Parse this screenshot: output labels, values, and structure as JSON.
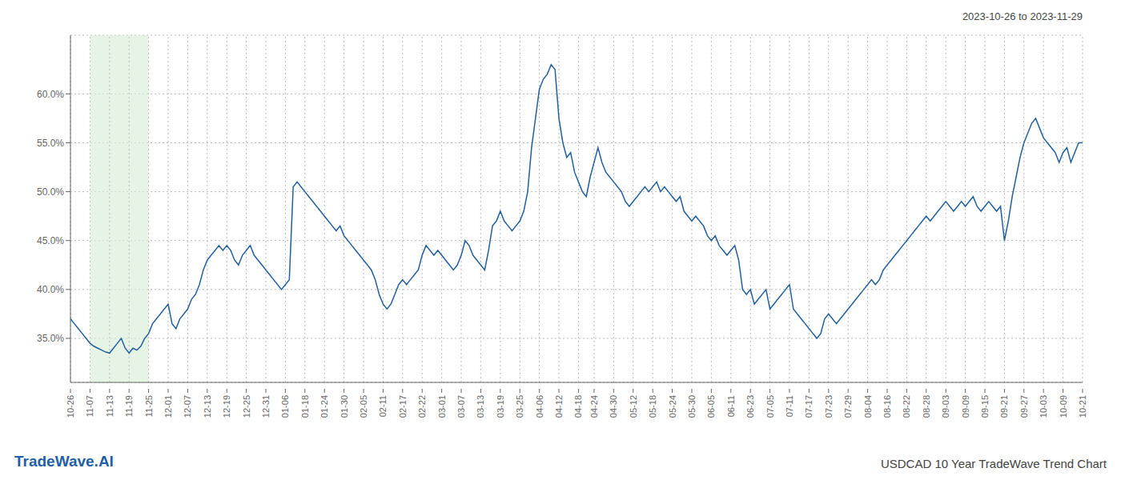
{
  "chart_data": {
    "type": "line",
    "title": "USDCAD 10 Year TradeWave Trend Chart",
    "subtitle": "2023-10-26 to 2023-11-29",
    "annotations": [
      "TradeWave.AI"
    ],
    "color": "#2060a0",
    "grid": true,
    "ylim": [
      30.5,
      66.0
    ],
    "yticks": [
      {
        "value": 35.0,
        "label": "35.0%"
      },
      {
        "value": 40.0,
        "label": "40.0%"
      },
      {
        "value": 45.0,
        "label": "45.0%"
      },
      {
        "value": 50.0,
        "label": "50.0%"
      },
      {
        "value": 55.0,
        "label": "55.0%"
      },
      {
        "value": 60.0,
        "label": "60.0%"
      }
    ],
    "highlight": {
      "from": "11-07",
      "to": "11-25",
      "color": "#d6edd6"
    },
    "categories": [
      "10-26",
      null,
      null,
      null,
      null,
      "11-07",
      null,
      null,
      null,
      null,
      "11-13",
      null,
      null,
      null,
      null,
      "11-19",
      null,
      null,
      null,
      null,
      "11-25",
      null,
      null,
      null,
      null,
      "12-01",
      null,
      null,
      null,
      null,
      "12-07",
      null,
      null,
      null,
      null,
      "12-13",
      null,
      null,
      null,
      null,
      "12-19",
      null,
      null,
      null,
      null,
      "12-25",
      null,
      null,
      null,
      null,
      "12-31",
      null,
      null,
      null,
      null,
      "01-06",
      null,
      null,
      null,
      null,
      "01-18",
      null,
      null,
      null,
      null,
      "01-24",
      null,
      null,
      null,
      null,
      "01-30",
      null,
      null,
      null,
      null,
      "02-05",
      null,
      null,
      null,
      null,
      "02-11",
      null,
      null,
      null,
      null,
      "02-17",
      null,
      null,
      null,
      null,
      "02-22",
      null,
      null,
      null,
      null,
      "03-01",
      null,
      null,
      null,
      null,
      "03-07",
      null,
      null,
      null,
      null,
      "03-13",
      null,
      null,
      null,
      null,
      "03-19",
      null,
      null,
      null,
      null,
      "03-25",
      null,
      null,
      null,
      null,
      "04-06",
      null,
      null,
      null,
      null,
      "04-12",
      null,
      null,
      null,
      null,
      "04-18",
      null,
      null,
      null,
      "04-24",
      null,
      null,
      null,
      null,
      "04-30",
      null,
      null,
      null,
      null,
      "05-12",
      null,
      null,
      null,
      null,
      "05-18",
      null,
      null,
      null,
      null,
      "05-24",
      null,
      null,
      null,
      null,
      "05-30",
      null,
      null,
      null,
      null,
      "06-05",
      null,
      null,
      null,
      null,
      "06-11",
      null,
      null,
      null,
      null,
      "06-23",
      null,
      null,
      null,
      null,
      "07-05",
      null,
      null,
      null,
      null,
      "07-11",
      null,
      null,
      null,
      null,
      "07-17",
      null,
      null,
      null,
      null,
      "07-23",
      null,
      null,
      null,
      null,
      "07-29",
      null,
      null,
      null,
      null,
      "08-04",
      null,
      null,
      null,
      null,
      "08-16",
      null,
      null,
      null,
      null,
      "08-22",
      null,
      null,
      null,
      null,
      "08-28",
      null,
      null,
      null,
      null,
      "09-03",
      null,
      null,
      null,
      null,
      "09-09",
      null,
      null,
      null,
      null,
      "09-15",
      null,
      null,
      null,
      null,
      "09-21",
      null,
      null,
      null,
      null,
      "09-27",
      null,
      null,
      null,
      null,
      "10-03",
      null,
      null,
      null,
      null,
      "10-09",
      null,
      null,
      null,
      null,
      "10-21"
    ],
    "values": [
      37.0,
      36.5,
      36.0,
      35.5,
      35.0,
      34.5,
      34.2,
      34.0,
      33.8,
      33.6,
      33.5,
      34.0,
      34.5,
      35.0,
      34.0,
      33.5,
      34.0,
      33.8,
      34.2,
      35.0,
      35.5,
      36.5,
      37.0,
      37.5,
      38.0,
      38.5,
      36.5,
      36.0,
      37.0,
      37.5,
      38.0,
      39.0,
      39.5,
      40.5,
      42.0,
      43.0,
      43.5,
      44.0,
      44.5,
      44.0,
      44.5,
      44.0,
      43.0,
      42.5,
      43.5,
      44.0,
      44.5,
      43.5,
      43.0,
      42.5,
      42.0,
      41.5,
      41.0,
      40.5,
      40.0,
      40.5,
      41.0,
      50.5,
      51.0,
      50.5,
      50.0,
      49.5,
      49.0,
      48.5,
      48.0,
      47.5,
      47.0,
      46.5,
      46.0,
      46.5,
      45.5,
      45.0,
      44.5,
      44.0,
      43.5,
      43.0,
      42.5,
      42.0,
      41.0,
      39.5,
      38.5,
      38.0,
      38.5,
      39.5,
      40.5,
      41.0,
      40.5,
      41.0,
      41.5,
      42.0,
      43.5,
      44.5,
      44.0,
      43.5,
      44.0,
      43.5,
      43.0,
      42.5,
      42.0,
      42.5,
      43.5,
      45.0,
      44.5,
      43.5,
      43.0,
      42.5,
      42.0,
      44.0,
      46.5,
      47.0,
      48.0,
      47.0,
      46.5,
      46.0,
      46.5,
      47.0,
      48.0,
      50.0,
      54.5,
      57.5,
      60.5,
      61.5,
      62.0,
      63.0,
      62.5,
      57.5,
      55.0,
      53.5,
      54.0,
      52.0,
      51.0,
      50.0,
      49.5,
      51.5,
      53.0,
      54.5,
      53.0,
      52.0,
      51.5,
      51.0,
      50.5,
      50.0,
      49.0,
      48.5,
      49.0,
      49.5,
      50.0,
      50.5,
      50.0,
      50.5,
      51.0,
      50.0,
      50.5,
      50.0,
      49.5,
      49.0,
      49.5,
      48.0,
      47.5,
      47.0,
      47.5,
      47.0,
      46.5,
      45.5,
      45.0,
      45.5,
      44.5,
      44.0,
      43.5,
      44.0,
      44.5,
      43.0,
      40.0,
      39.5,
      40.0,
      38.5,
      39.0,
      39.5,
      40.0,
      38.0,
      38.5,
      39.0,
      39.5,
      40.0,
      40.5,
      38.0,
      37.5,
      37.0,
      36.5,
      36.0,
      35.5,
      35.0,
      35.5,
      37.0,
      37.5,
      37.0,
      36.5,
      37.0,
      37.5,
      38.0,
      38.5,
      39.0,
      39.5,
      40.0,
      40.5,
      41.0,
      40.5,
      41.0,
      42.0,
      42.5,
      43.0,
      43.5,
      44.0,
      44.5,
      45.0,
      45.5,
      46.0,
      46.5,
      47.0,
      47.5,
      47.0,
      47.5,
      48.0,
      48.5,
      49.0,
      48.5,
      48.0,
      48.5,
      49.0,
      48.5,
      49.0,
      49.5,
      48.5,
      48.0,
      48.5,
      49.0,
      48.5,
      48.0,
      48.5,
      45.0,
      47.0,
      49.5,
      51.5,
      53.5,
      55.0,
      56.0,
      57.0,
      57.5,
      56.5,
      55.5,
      55.0,
      54.5,
      54.0,
      53.0,
      54.0,
      54.5,
      53.0,
      54.0,
      55.0,
      55.0
    ]
  }
}
